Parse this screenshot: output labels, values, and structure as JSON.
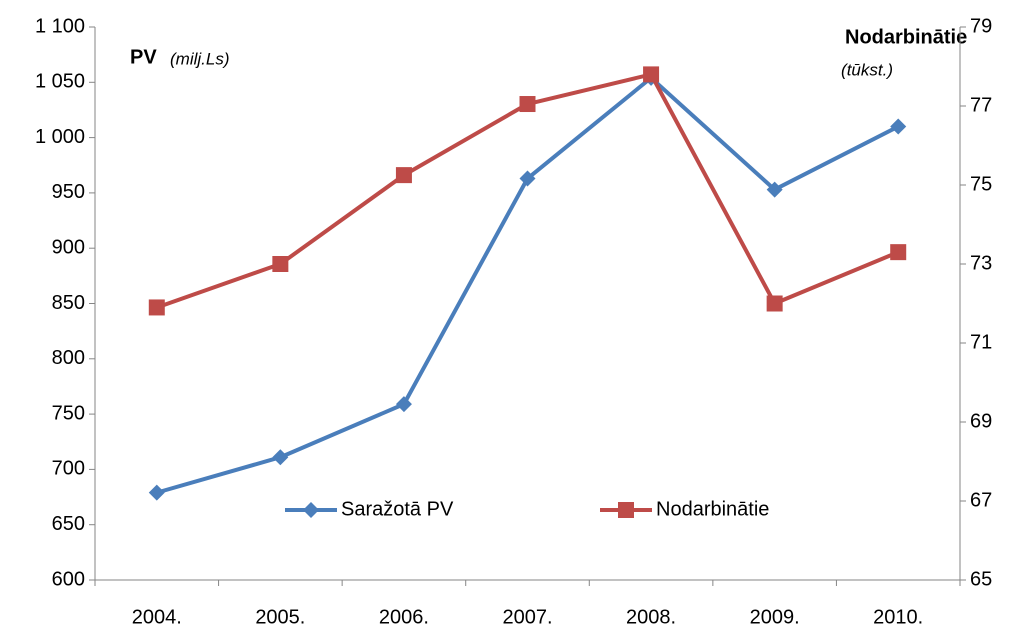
{
  "chart_data": {
    "type": "line",
    "y_label": "PV",
    "y_label_unit": "(milj.Ls)",
    "y2_label": "Nodarbinātie",
    "y2_label_unit": "(tūkst.)",
    "categories": [
      "2004.",
      "2005.",
      "2006.",
      "2007.",
      "2008.",
      "2009.",
      "2010."
    ],
    "series": [
      {
        "name": "Saražotā PV",
        "color": "#4a7ebb",
        "marker": "diamond",
        "values": [
          679,
          711,
          759,
          963,
          1054,
          953,
          1010
        ]
      },
      {
        "name": "Nodarbinātie",
        "color": "#be4b48",
        "marker": "square",
        "axis": "y2",
        "values": [
          71.9,
          73.0,
          75.25,
          77.05,
          77.8,
          72.0,
          73.3
        ]
      }
    ],
    "ylim": [
      600,
      1100
    ],
    "yticks": [
      600,
      650,
      700,
      750,
      800,
      850,
      900,
      950,
      {
        "value": 1000,
        "label": "1 000"
      },
      {
        "value": 1050,
        "label": "1 050"
      },
      {
        "value": 1100,
        "label": "1 100"
      }
    ],
    "y2lim": [
      65,
      79
    ],
    "y2ticks": [
      65,
      67,
      69,
      71,
      73,
      75,
      77,
      79
    ],
    "grid": false
  }
}
